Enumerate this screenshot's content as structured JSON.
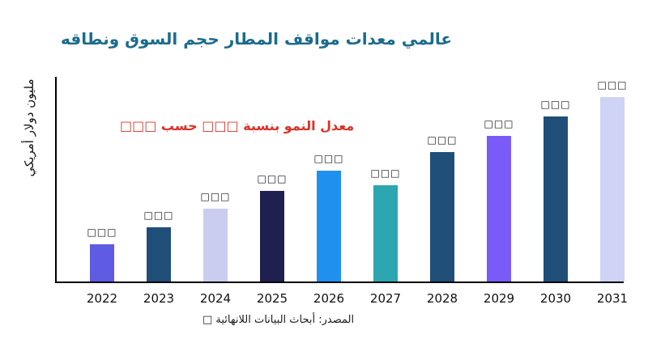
{
  "page": {
    "title": "عالمي معدات مواقف المطار حجم السوق ونطاقه",
    "y_axis_label": "مليون دولار أمريكي",
    "annotation": "معدل النمو بنسبة □□□ حسب □□□",
    "source": "المصدر: أبحاث البيانات اللانهائية □"
  },
  "colors": {
    "title": "#1B6C8C",
    "annotation": "#DD3126",
    "axis": "#000000"
  },
  "chart_data": {
    "type": "bar",
    "title": "عالمي معدات مواقف المطار حجم السوق ونطاقه",
    "ylabel": "مليون دولار أمريكي",
    "xlabel": "",
    "categories": [
      "2022",
      "2023",
      "2024",
      "2025",
      "2026",
      "2027",
      "2028",
      "2029",
      "2030",
      "2031"
    ],
    "values": [
      46,
      67,
      90,
      112,
      137,
      119,
      160,
      180,
      204,
      228
    ],
    "value_unit": "relative-pixels (numeric labels not shown in image)",
    "data_labels": [
      "□□□",
      "□□□",
      "□□□",
      "□□□",
      "□□□",
      "□□□",
      "□□□",
      "□□□",
      "□□□",
      "□□□"
    ],
    "bar_colors": [
      "#5F5BE3",
      "#1F4E79",
      "#C9CDF0",
      "#1F2050",
      "#2090F0",
      "#2CA6B0",
      "#1F4E79",
      "#7A5BF7",
      "#1F4E79",
      "#CFD3F5"
    ],
    "annotation": "معدل النمو بنسبة □□□ حسب □□□",
    "legend": "none",
    "grid": false,
    "ylim": [
      0,
      250
    ]
  }
}
